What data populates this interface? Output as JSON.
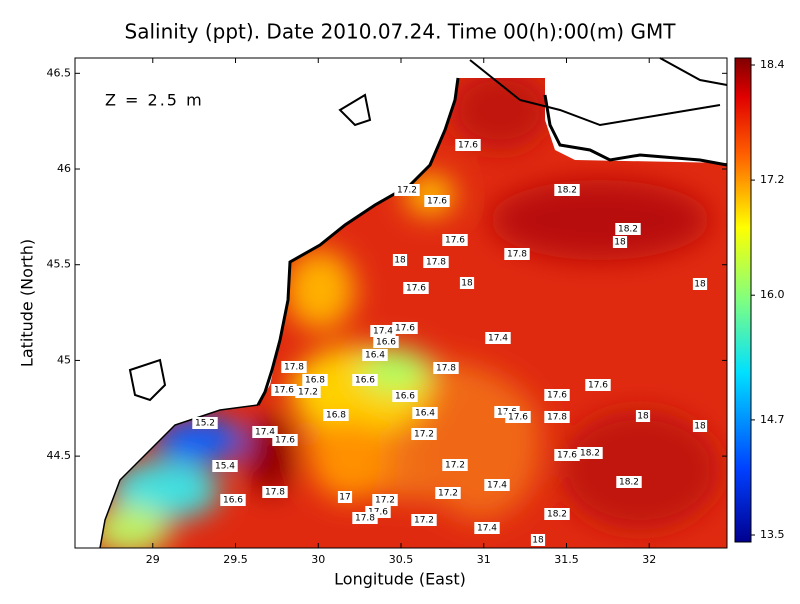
{
  "chart_data": {
    "type": "contour-map",
    "title": "Salinity (ppt). Date 2010.07.24. Time 00(h):00(m) GMT",
    "annotation": "Z = 2.5 m",
    "x_label": "Longitude (East)",
    "y_label": "Latitude (North)",
    "xlim": [
      28.53,
      32.47
    ],
    "xticks": [
      29,
      29.5,
      30,
      30.5,
      31,
      31.5,
      32
    ],
    "ylim": [
      44.02,
      46.58
    ],
    "yticks": [
      44.5,
      45,
      45.5,
      46,
      46.5
    ],
    "colorbar_lim": [
      13.5,
      18.4
    ],
    "colorbar_ticks": [
      18.4,
      17.2,
      {
        "value": 16,
        "label": "16.0"
      },
      14.7,
      13.5
    ],
    "contour_labels": [
      17.6,
      17.2,
      17.6,
      18.2,
      17.6,
      18,
      17.8,
      17.8,
      18.2,
      18,
      18,
      17.6,
      18,
      17.4,
      17.6,
      16.6,
      17.4,
      16.4,
      17.8,
      17.8,
      16.8,
      16.6,
      17.6,
      17.2,
      16.6,
      17.6,
      17.6,
      16.8,
      16.4,
      17.6,
      17.6,
      17.8,
      18,
      18,
      15.2,
      17.4,
      17.6,
      17.2,
      17.6,
      18.2,
      17.2,
      15.4,
      17.8,
      17.4,
      18.2,
      17.2,
      17,
      17.2,
      16.6,
      17.6,
      17.8,
      18.2,
      17.4,
      17.2,
      18
    ]
  }
}
